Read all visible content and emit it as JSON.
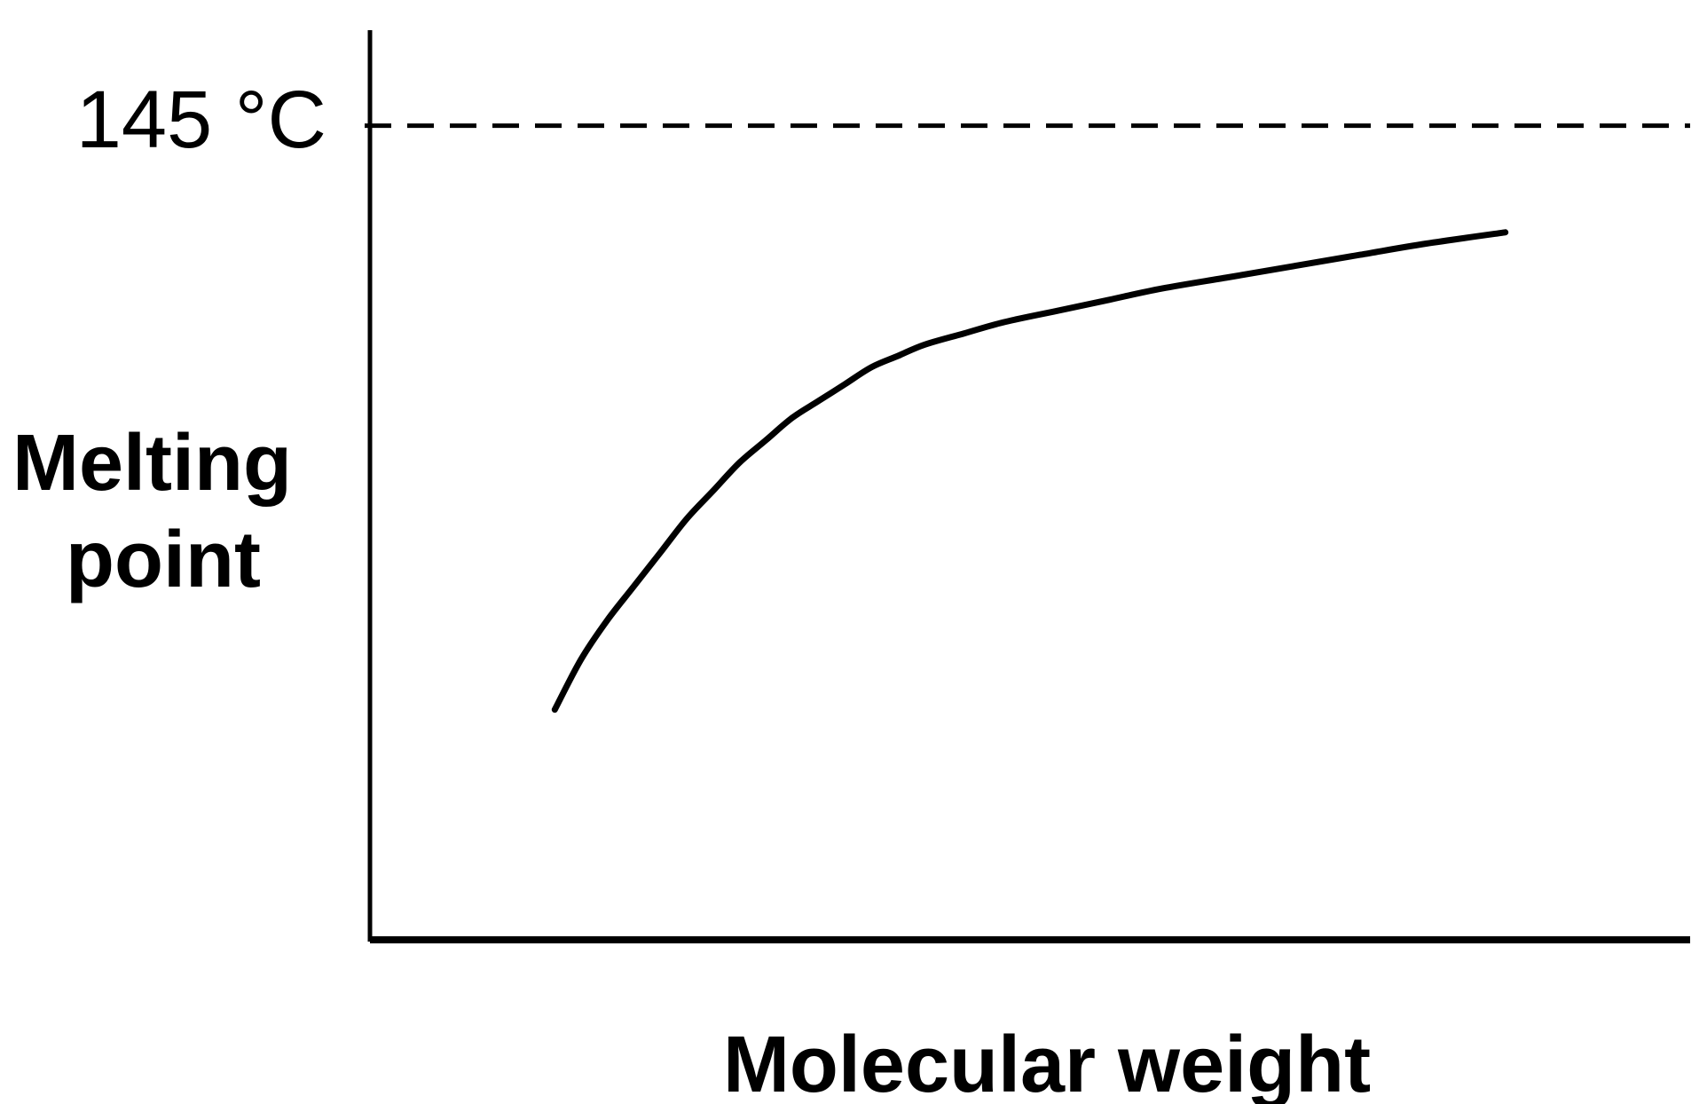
{
  "chart_data": {
    "type": "line",
    "title": "",
    "xlabel": "Molecular weight",
    "ylabel_lines": [
      "Melting",
      "point"
    ],
    "reference_line": {
      "label": "145 °C",
      "value": 145,
      "style": "dashed"
    },
    "xlim": [
      0,
      100
    ],
    "ylim": [
      0,
      150
    ],
    "grid": false,
    "legend": "none",
    "series": [
      {
        "x": [
          14,
          16,
          18,
          20,
          22,
          24,
          26,
          28,
          30,
          32,
          34,
          36,
          38,
          40,
          42,
          45,
          48,
          52,
          56,
          60,
          65,
          70,
          75,
          80,
          86
        ],
        "y": [
          41,
          50,
          57,
          63,
          69,
          75,
          80,
          85,
          89,
          93,
          96,
          99,
          102,
          104,
          106,
          108,
          110,
          112,
          114,
          116,
          118,
          120,
          122,
          124,
          126
        ]
      }
    ],
    "colors": {
      "line": "#000000",
      "axes": "#000000",
      "background": "#ffffff"
    }
  }
}
